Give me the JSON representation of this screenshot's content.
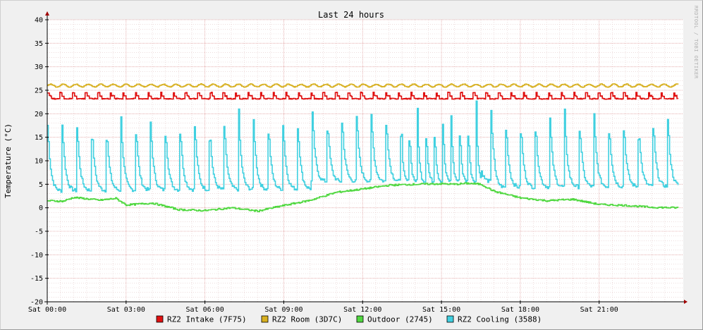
{
  "watermark": "RRDTOOL / TOBI OETIKER",
  "chart_data": {
    "type": "line",
    "title": "Last 24 hours",
    "ylabel": "Temperature (°C)",
    "xlabel": "",
    "ylim": [
      -20,
      40
    ],
    "xlim_hours": [
      0,
      24.2
    ],
    "yticks": [
      40,
      35,
      30,
      25,
      20,
      15,
      10,
      5,
      0,
      -5,
      -10,
      -15,
      -20
    ],
    "xtick_hours": [
      0,
      3,
      6,
      9,
      12,
      15,
      18,
      21
    ],
    "xtick_labels": [
      "Sat 00:00",
      "Sat 03:00",
      "Sat 06:00",
      "Sat 09:00",
      "Sat 12:00",
      "Sat 15:00",
      "Sat 18:00",
      "Sat 21:00"
    ],
    "grid": true,
    "legend_position": "bottom",
    "series": [
      {
        "name": "RZ2 Intake (7F75)",
        "color": "#e01010",
        "base": 23.5,
        "cycle_amplitude": 1.0,
        "points": [
          [
            0,
            23.6
          ],
          [
            24,
            23.6
          ]
        ]
      },
      {
        "name": "RZ2 Room (3D7C)",
        "color": "#d8b020",
        "base": 26.0,
        "cycle_amplitude": 0.3,
        "points": [
          [
            0,
            26.0
          ],
          [
            24,
            26.0
          ]
        ]
      },
      {
        "name": "Outdoor (2745)",
        "color": "#50d840",
        "points": [
          [
            0,
            1.5
          ],
          [
            0.6,
            1.4
          ],
          [
            1,
            2.2
          ],
          [
            2,
            1.6
          ],
          [
            2.6,
            2.0
          ],
          [
            3,
            0.6
          ],
          [
            4,
            1.0
          ],
          [
            5,
            -0.4
          ],
          [
            6,
            -0.6
          ],
          [
            7,
            0.0
          ],
          [
            8,
            -0.7
          ],
          [
            9,
            0.5
          ],
          [
            10,
            1.6
          ],
          [
            11,
            3.3
          ],
          [
            12,
            4.0
          ],
          [
            13,
            4.8
          ],
          [
            14,
            5.0
          ],
          [
            15,
            5.1
          ],
          [
            15.5,
            5.0
          ],
          [
            16,
            5.2
          ],
          [
            16.5,
            5.0
          ],
          [
            17,
            3.5
          ],
          [
            18,
            2.1
          ],
          [
            19,
            1.5
          ],
          [
            20,
            1.8
          ],
          [
            21,
            0.7
          ],
          [
            22,
            0.5
          ],
          [
            23,
            0.1
          ],
          [
            24,
            0.0
          ]
        ]
      },
      {
        "name": "RZ2 Cooling (3588)",
        "color": "#40d0e0",
        "floor_start": 3.5,
        "floor_end": 4.5,
        "floor_midday": 5.5,
        "spike_min": 14,
        "spike_max": 26,
        "spikes_per_hour": 1.9
      }
    ]
  }
}
